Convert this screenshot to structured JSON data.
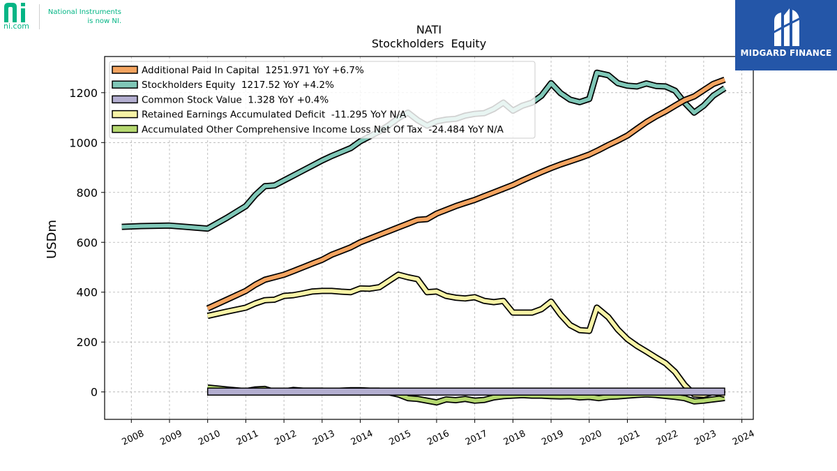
{
  "branding": {
    "ni_logo": "ni-logo",
    "ni_url": "ni.com",
    "ni_tagline": [
      "National Instruments",
      "is now NI."
    ],
    "partner_name": "MIDGARD FINANCE",
    "ni_color": "#03b585",
    "partner_color": "#2456a8"
  },
  "chart_data": {
    "type": "line",
    "title": "NATI",
    "subtitle": "Stockholders  Equity",
    "xlabel": "",
    "ylabel": "USDm",
    "xlim": [
      2007.3,
      2024.3
    ],
    "ylim": [
      -110,
      1345
    ],
    "x_ticks": [
      "2008",
      "2009",
      "2010",
      "2011",
      "2012",
      "2013",
      "2014",
      "2015",
      "2016",
      "2017",
      "2018",
      "2019",
      "2020",
      "2021",
      "2022",
      "2023",
      "2024"
    ],
    "y_ticks": [
      0,
      200,
      400,
      600,
      800,
      1000,
      1200
    ],
    "grid": true,
    "legend_position": "top-left",
    "series": [
      {
        "name": "Additional Paid In Capital",
        "legend": "Additional Paid In Capital  1251.971 YoY +6.7%",
        "color": "#f4a460",
        "points": [
          [
            2010.0,
            335
          ],
          [
            2010.5,
            370
          ],
          [
            2011.0,
            405
          ],
          [
            2011.25,
            430
          ],
          [
            2011.5,
            450
          ],
          [
            2011.75,
            460
          ],
          [
            2012.0,
            470
          ],
          [
            2012.25,
            485
          ],
          [
            2012.5,
            500
          ],
          [
            2012.75,
            515
          ],
          [
            2013.0,
            530
          ],
          [
            2013.25,
            550
          ],
          [
            2013.5,
            565
          ],
          [
            2013.75,
            580
          ],
          [
            2014.0,
            600
          ],
          [
            2014.25,
            615
          ],
          [
            2014.5,
            630
          ],
          [
            2014.75,
            645
          ],
          [
            2015.0,
            660
          ],
          [
            2015.25,
            675
          ],
          [
            2015.5,
            690
          ],
          [
            2015.75,
            693
          ],
          [
            2016.0,
            715
          ],
          [
            2016.25,
            730
          ],
          [
            2016.5,
            745
          ],
          [
            2016.75,
            758
          ],
          [
            2017.0,
            770
          ],
          [
            2017.25,
            785
          ],
          [
            2017.5,
            800
          ],
          [
            2017.75,
            815
          ],
          [
            2018.0,
            830
          ],
          [
            2018.25,
            848
          ],
          [
            2018.5,
            865
          ],
          [
            2018.75,
            882
          ],
          [
            2019.0,
            898
          ],
          [
            2019.25,
            912
          ],
          [
            2019.5,
            925
          ],
          [
            2019.75,
            938
          ],
          [
            2020.0,
            952
          ],
          [
            2020.25,
            970
          ],
          [
            2020.5,
            990
          ],
          [
            2020.75,
            1008
          ],
          [
            2021.0,
            1028
          ],
          [
            2021.25,
            1055
          ],
          [
            2021.5,
            1082
          ],
          [
            2021.75,
            1105
          ],
          [
            2022.0,
            1125
          ],
          [
            2022.25,
            1148
          ],
          [
            2022.5,
            1170
          ],
          [
            2022.75,
            1185
          ],
          [
            2023.0,
            1210
          ],
          [
            2023.25,
            1235
          ],
          [
            2023.55,
            1252
          ]
        ]
      },
      {
        "name": "Stockholders Equity",
        "legend": "Stockholders Equity  1217.52 YoY +4.2%",
        "color": "#7fc7b7",
        "points": [
          [
            2007.75,
            662
          ],
          [
            2008.25,
            665
          ],
          [
            2009.0,
            667
          ],
          [
            2010.0,
            655
          ],
          [
            2010.5,
            698
          ],
          [
            2011.0,
            745
          ],
          [
            2011.25,
            790
          ],
          [
            2011.5,
            825
          ],
          [
            2011.75,
            828
          ],
          [
            2012.0,
            848
          ],
          [
            2012.25,
            868
          ],
          [
            2012.5,
            888
          ],
          [
            2012.75,
            908
          ],
          [
            2013.0,
            928
          ],
          [
            2013.25,
            946
          ],
          [
            2013.5,
            962
          ],
          [
            2013.75,
            978
          ],
          [
            2014.0,
            1005
          ],
          [
            2014.25,
            1025
          ],
          [
            2014.5,
            1045
          ],
          [
            2014.75,
            1070
          ],
          [
            2015.0,
            1098
          ],
          [
            2015.25,
            1120
          ],
          [
            2015.5,
            1090
          ],
          [
            2015.75,
            1068
          ],
          [
            2016.0,
            1085
          ],
          [
            2016.25,
            1092
          ],
          [
            2016.5,
            1095
          ],
          [
            2016.75,
            1108
          ],
          [
            2017.0,
            1115
          ],
          [
            2017.25,
            1118
          ],
          [
            2017.5,
            1135
          ],
          [
            2017.75,
            1160
          ],
          [
            2018.0,
            1128
          ],
          [
            2018.25,
            1148
          ],
          [
            2018.5,
            1160
          ],
          [
            2018.75,
            1188
          ],
          [
            2019.0,
            1238
          ],
          [
            2019.25,
            1198
          ],
          [
            2019.5,
            1172
          ],
          [
            2019.75,
            1162
          ],
          [
            2020.0,
            1175
          ],
          [
            2020.2,
            1280
          ],
          [
            2020.5,
            1270
          ],
          [
            2020.75,
            1238
          ],
          [
            2021.0,
            1228
          ],
          [
            2021.25,
            1225
          ],
          [
            2021.5,
            1237
          ],
          [
            2021.75,
            1227
          ],
          [
            2022.0,
            1225
          ],
          [
            2022.25,
            1208
          ],
          [
            2022.5,
            1160
          ],
          [
            2022.75,
            1120
          ],
          [
            2023.0,
            1148
          ],
          [
            2023.25,
            1188
          ],
          [
            2023.55,
            1218
          ]
        ]
      },
      {
        "name": "Common Stock Value",
        "legend": "Common Stock Value  1.328 YoY +0.4%",
        "color": "#b3aed0",
        "points": [
          [
            2010.0,
            1.3
          ],
          [
            2023.55,
            1.3
          ]
        ]
      },
      {
        "name": "Retained Earnings Accumulated Deficit",
        "legend": "Retained Earnings Accumulated Deficit  -11.295 YoY N/A",
        "color": "#f7f3a6",
        "points": [
          [
            2010.0,
            305
          ],
          [
            2010.5,
            322
          ],
          [
            2011.0,
            338
          ],
          [
            2011.25,
            355
          ],
          [
            2011.5,
            368
          ],
          [
            2011.75,
            370
          ],
          [
            2012.0,
            385
          ],
          [
            2012.25,
            388
          ],
          [
            2012.5,
            395
          ],
          [
            2012.75,
            403
          ],
          [
            2013.0,
            405
          ],
          [
            2013.25,
            405
          ],
          [
            2013.5,
            402
          ],
          [
            2013.75,
            400
          ],
          [
            2014.0,
            415
          ],
          [
            2014.25,
            414
          ],
          [
            2014.5,
            420
          ],
          [
            2014.75,
            445
          ],
          [
            2015.0,
            470
          ],
          [
            2015.25,
            460
          ],
          [
            2015.5,
            452
          ],
          [
            2015.75,
            400
          ],
          [
            2016.0,
            403
          ],
          [
            2016.25,
            385
          ],
          [
            2016.5,
            378
          ],
          [
            2016.75,
            375
          ],
          [
            2017.0,
            380
          ],
          [
            2017.25,
            365
          ],
          [
            2017.5,
            360
          ],
          [
            2017.75,
            365
          ],
          [
            2018.0,
            318
          ],
          [
            2018.25,
            318
          ],
          [
            2018.5,
            318
          ],
          [
            2018.75,
            332
          ],
          [
            2019.0,
            362
          ],
          [
            2019.25,
            310
          ],
          [
            2019.5,
            268
          ],
          [
            2019.75,
            248
          ],
          [
            2020.0,
            245
          ],
          [
            2020.2,
            338
          ],
          [
            2020.5,
            300
          ],
          [
            2020.75,
            250
          ],
          [
            2021.0,
            212
          ],
          [
            2021.25,
            185
          ],
          [
            2021.5,
            162
          ],
          [
            2021.75,
            138
          ],
          [
            2022.0,
            115
          ],
          [
            2022.25,
            80
          ],
          [
            2022.5,
            28
          ],
          [
            2022.75,
            -10
          ],
          [
            2023.0,
            -12
          ],
          [
            2023.25,
            0
          ],
          [
            2023.55,
            -11.3
          ]
        ]
      },
      {
        "name": "Accumulated Other Comprehensive Income Loss Net Of Tax",
        "legend": "Accumulated Other Comprehensive Income Loss Net Of Tax  -24.484 YoY N/A",
        "color": "#b5d870",
        "points": [
          [
            2010.0,
            18
          ],
          [
            2010.5,
            10
          ],
          [
            2011.0,
            3
          ],
          [
            2011.25,
            10
          ],
          [
            2011.5,
            12
          ],
          [
            2011.75,
            0
          ],
          [
            2012.0,
            2
          ],
          [
            2012.25,
            8
          ],
          [
            2012.5,
            5
          ],
          [
            2012.75,
            5
          ],
          [
            2013.0,
            5
          ],
          [
            2013.25,
            3
          ],
          [
            2013.5,
            5
          ],
          [
            2013.75,
            7
          ],
          [
            2014.0,
            7
          ],
          [
            2014.25,
            5
          ],
          [
            2014.5,
            5
          ],
          [
            2014.75,
            -2
          ],
          [
            2015.0,
            -10
          ],
          [
            2015.25,
            -25
          ],
          [
            2015.5,
            -28
          ],
          [
            2015.75,
            -35
          ],
          [
            2016.0,
            -42
          ],
          [
            2016.25,
            -30
          ],
          [
            2016.5,
            -33
          ],
          [
            2016.75,
            -28
          ],
          [
            2017.0,
            -35
          ],
          [
            2017.25,
            -32
          ],
          [
            2017.5,
            -22
          ],
          [
            2017.75,
            -17
          ],
          [
            2018.0,
            -15
          ],
          [
            2018.25,
            -13
          ],
          [
            2018.5,
            -15
          ],
          [
            2018.75,
            -15
          ],
          [
            2019.0,
            -17
          ],
          [
            2019.25,
            -18
          ],
          [
            2019.5,
            -17
          ],
          [
            2019.75,
            -22
          ],
          [
            2020.0,
            -20
          ],
          [
            2020.25,
            -25
          ],
          [
            2020.5,
            -20
          ],
          [
            2020.75,
            -18
          ],
          [
            2021.0,
            -15
          ],
          [
            2021.25,
            -12
          ],
          [
            2021.5,
            -10
          ],
          [
            2021.75,
            -12
          ],
          [
            2022.0,
            -16
          ],
          [
            2022.25,
            -20
          ],
          [
            2022.5,
            -25
          ],
          [
            2022.75,
            -38
          ],
          [
            2023.0,
            -35
          ],
          [
            2023.25,
            -30
          ],
          [
            2023.55,
            -24.5
          ]
        ]
      }
    ]
  }
}
